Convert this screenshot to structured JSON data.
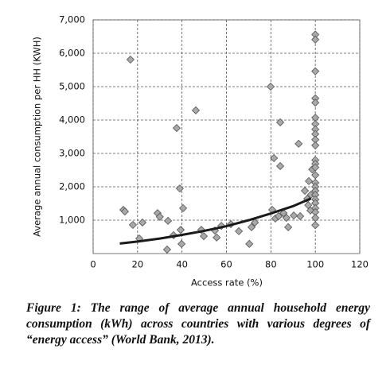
{
  "chart_data": {
    "type": "scatter",
    "xlabel": "Access rate (%)",
    "ylabel": "Average annual consumption per HH (KWH)",
    "caption": "Figure 1: The range of average annual household energy consumption (kWh) across countries with various degrees of “energy access” (World Bank, 2013).",
    "color": "#a9a9a9",
    "x": [
      13.6,
      14.3,
      16.8,
      17.9,
      20.8,
      22.2,
      29,
      30,
      33.7,
      33.3,
      36.2,
      37.6,
      39,
      39.4,
      40.5,
      39.8,
      46.2,
      48.7,
      49.8,
      54.8,
      55.6,
      57.7,
      62,
      65.6,
      70.3,
      71.3,
      72.8,
      79.9,
      81.4,
      80.6,
      82,
      84.2,
      84.2,
      83.5,
      85.7,
      87,
      87.8,
      90.3,
      92.5,
      93.2,
      95.3,
      96.4,
      96.8,
      97.1,
      97.8,
      98.6,
      98,
      100,
      100,
      100,
      100,
      100,
      100,
      100,
      100,
      100,
      100,
      100,
      100,
      100,
      100,
      100,
      100,
      100,
      100,
      100,
      100,
      100,
      100,
      100,
      100,
      100
    ],
    "values": [
      1310,
      1260,
      5810,
      860,
      450,
      930,
      1210,
      1100,
      980,
      120,
      550,
      3760,
      1950,
      710,
      1360,
      290,
      4290,
      710,
      520,
      690,
      480,
      830,
      880,
      670,
      290,
      790,
      930,
      5000,
      2860,
      1310,
      1050,
      2620,
      3930,
      1120,
      1210,
      1070,
      790,
      1140,
      3290,
      1120,
      1880,
      1640,
      1450,
      2170,
      1290,
      2520,
      1760,
      6560,
      6410,
      5460,
      4650,
      4520,
      4070,
      3880,
      3720,
      3580,
      3410,
      3240,
      2800,
      2690,
      2580,
      2350,
      2120,
      2000,
      1880,
      1760,
      1620,
      1510,
      1360,
      1240,
      1070,
      850
    ],
    "trend": {
      "color": "#1a1a1a",
      "x": [
        12,
        20,
        30,
        40,
        50,
        60,
        70,
        80,
        90,
        98
      ],
      "values": [
        300,
        360,
        450,
        560,
        680,
        820,
        1000,
        1200,
        1420,
        1650
      ]
    },
    "xlim": [
      0,
      120
    ],
    "xticks": [
      0,
      20,
      40,
      60,
      80,
      100,
      120
    ],
    "ylim": [
      0,
      7000
    ],
    "yticks": [
      {
        "value": 1000,
        "label": "1,000"
      },
      {
        "value": 2000,
        "label": "2,000"
      },
      {
        "value": 3000,
        "label": "3,000"
      },
      {
        "value": 4000,
        "label": "4,000"
      },
      {
        "value": 5000,
        "label": "5,000"
      },
      {
        "value": 6000,
        "label": "6,000"
      },
      {
        "value": 7000,
        "label": "7,000"
      }
    ],
    "grid": true
  }
}
